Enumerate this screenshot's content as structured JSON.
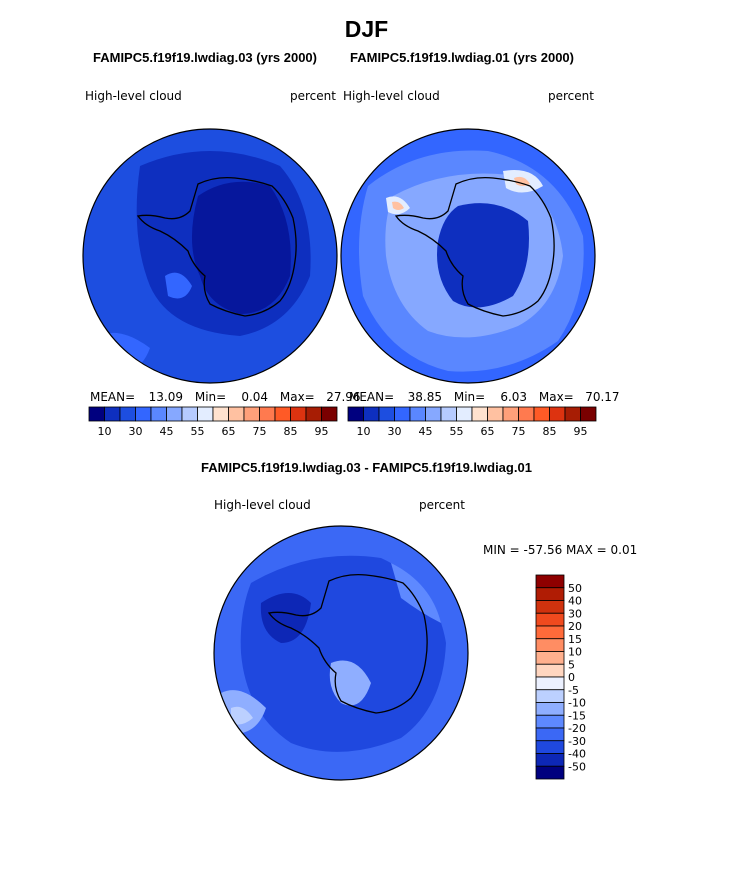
{
  "figure": {
    "title": "DJF",
    "left_case": "FAMIPC5.f19f19.lwdiag.03 (yrs 2000)",
    "right_case": "FAMIPC5.f19f19.lwdiag.01 (yrs 2000)",
    "diff_case": "FAMIPC5.f19f19.lwdiag.03 - FAMIPC5.f19f19.lwdiag.01"
  },
  "chart_data": [
    {
      "type": "heatmap",
      "projection": "south polar stereographic",
      "title": "FAMIPC5.f19f19.lwdiag.03 (yrs 2000)",
      "variable": "High-level cloud",
      "units": "percent",
      "stats": {
        "mean_label": "MEAN=",
        "mean": "13.09",
        "min_label": "Min=",
        "min": "0.04",
        "max_label": "Max=",
        "max": "27.96"
      },
      "colorbar": {
        "orientation": "horizontal",
        "tick_labels": [
          "10",
          "30",
          "45",
          "55",
          "65",
          "75",
          "85",
          "95"
        ],
        "colors": [
          "#00007f",
          "#0e2fbf",
          "#1d4ee0",
          "#3366ff",
          "#5a87ff",
          "#86a8ff",
          "#b6cbff",
          "#e3edff",
          "#ffe2cf",
          "#ffc1a1",
          "#ffa07a",
          "#ff7a4f",
          "#ff5a26",
          "#dd3310",
          "#a71d04",
          "#7a0000"
        ]
      }
    },
    {
      "type": "heatmap",
      "projection": "south polar stereographic",
      "title": "FAMIPC5.f19f19.lwdiag.01 (yrs 2000)",
      "variable": "High-level cloud",
      "units": "percent",
      "stats": {
        "mean_label": "MEAN=",
        "mean": "38.85",
        "min_label": "Min=",
        "min": "6.03",
        "max_label": "Max=",
        "max": "70.17"
      },
      "colorbar": {
        "orientation": "horizontal",
        "tick_labels": [
          "10",
          "30",
          "45",
          "55",
          "65",
          "75",
          "85",
          "95"
        ],
        "colors": [
          "#00007f",
          "#0e2fbf",
          "#1d4ee0",
          "#3366ff",
          "#5a87ff",
          "#86a8ff",
          "#b6cbff",
          "#e3edff",
          "#ffe2cf",
          "#ffc1a1",
          "#ffa07a",
          "#ff7a4f",
          "#ff5a26",
          "#dd3310",
          "#a71d04",
          "#7a0000"
        ]
      }
    },
    {
      "type": "heatmap",
      "projection": "south polar stereographic",
      "title": "FAMIPC5.f19f19.lwdiag.03 - FAMIPC5.f19f19.lwdiag.01",
      "variable": "High-level cloud",
      "units": "percent",
      "minmax_text": "MIN = -57.56 MAX =    0.01",
      "colorbar": {
        "orientation": "vertical",
        "tick_labels": [
          "50",
          "40",
          "30",
          "20",
          "15",
          "10",
          "5",
          "0",
          "-5",
          "-10",
          "-15",
          "-20",
          "-30",
          "-40",
          "-50"
        ],
        "colors": [
          "#8e0000",
          "#b01c04",
          "#d0320e",
          "#f04a1e",
          "#ff6a3a",
          "#ff8d63",
          "#ffb08e",
          "#ffd6c0",
          "#ecf1ff",
          "#bcd0ff",
          "#8faeff",
          "#5e89ff",
          "#3b68f5",
          "#1f48df",
          "#0d27b6",
          "#00007f"
        ]
      }
    }
  ]
}
